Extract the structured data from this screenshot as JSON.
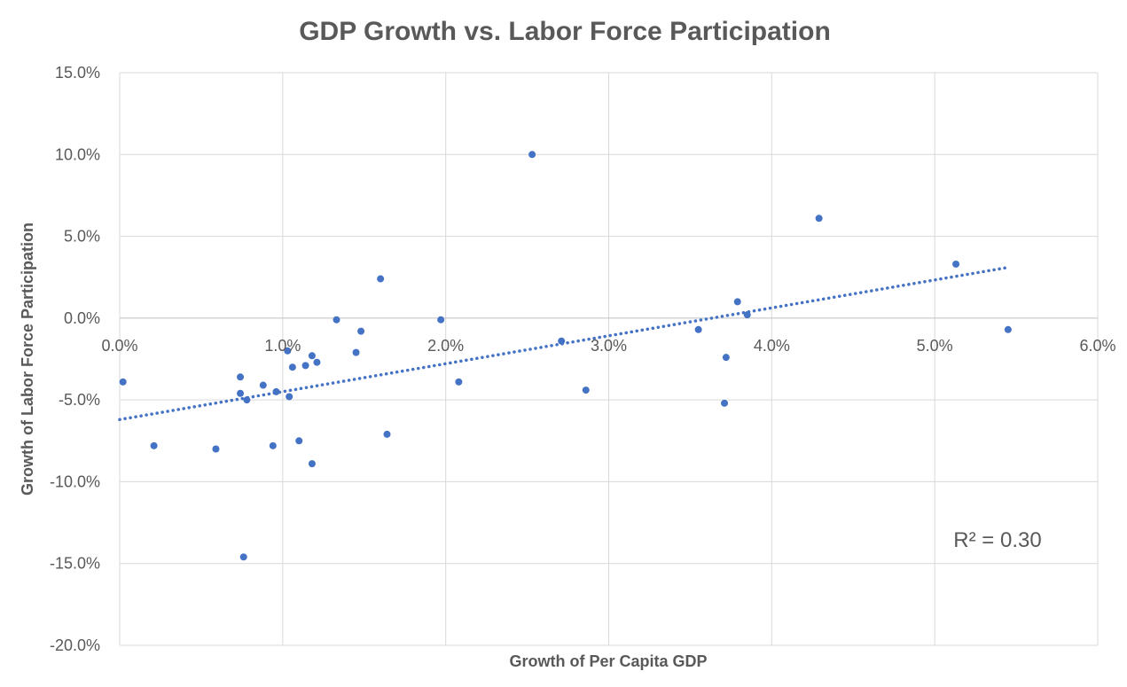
{
  "chart_data": {
    "type": "scatter",
    "title": "GDP Growth vs. Labor Force Participation",
    "xlabel": "Growth of Per Capita GDP",
    "ylabel": "Growth of Labor Force Participation",
    "xlim": [
      0.0,
      6.0
    ],
    "ylim": [
      -20.0,
      15.0
    ],
    "x_ticks": [
      0.0,
      1.0,
      2.0,
      3.0,
      4.0,
      5.0,
      6.0
    ],
    "x_tick_labels": [
      "0.0%",
      "1.0%",
      "2.0%",
      "3.0%",
      "4.0%",
      "5.0%",
      "6.0%"
    ],
    "y_ticks": [
      15.0,
      10.0,
      5.0,
      0.0,
      -5.0,
      -10.0,
      -15.0,
      -20.0
    ],
    "y_tick_labels": [
      "15.0%",
      "10.0%",
      "5.0%",
      "0.0%",
      "-5.0%",
      "-10.0%",
      "-15.0%",
      "-20.0%"
    ],
    "grid": true,
    "x_tick_labels_position": "at zero line",
    "marker_color": "#4472C4",
    "gridline_color": "#D9D9D9",
    "text_color": "#595959",
    "series": [
      {
        "x": [
          0.02,
          0.21,
          0.59,
          0.74,
          0.74,
          0.76,
          0.78,
          0.88,
          0.94,
          0.96,
          1.03,
          1.04,
          1.06,
          1.1,
          1.14,
          1.18,
          1.18,
          1.21,
          1.33,
          1.45,
          1.48,
          1.6,
          1.64,
          1.97,
          2.08,
          2.53,
          2.71,
          2.86,
          3.55,
          3.71,
          3.72,
          3.79,
          3.85,
          4.29,
          5.13,
          5.45
        ],
        "y": [
          -3.9,
          -7.8,
          -8.0,
          -3.6,
          -4.6,
          -14.6,
          -5.0,
          -4.1,
          -7.8,
          -4.5,
          -2.0,
          -4.8,
          -3.0,
          -7.5,
          -2.9,
          -2.3,
          -8.9,
          -2.7,
          -0.1,
          -2.1,
          -0.8,
          2.4,
          -7.1,
          -0.1,
          -3.9,
          10.0,
          -1.4,
          -4.4,
          -0.7,
          -5.2,
          -2.4,
          1.0,
          0.2,
          6.1,
          3.3,
          -0.7
        ]
      }
    ],
    "trendline": {
      "type": "linear",
      "style": "dotted",
      "x": [
        0.0,
        5.45
      ],
      "y": [
        -6.2,
        3.1
      ]
    },
    "annotation": "R² = 0.30"
  }
}
